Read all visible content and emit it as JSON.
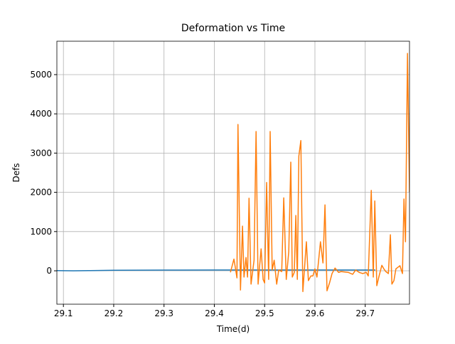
{
  "chart_data": {
    "type": "line",
    "title": "Deformation vs Time",
    "xlabel": "Time(d)",
    "ylabel": "Defs",
    "xlim": [
      29.087,
      29.788
    ],
    "ylim": [
      -851,
      5851
    ],
    "xticks": [
      29.1,
      29.2,
      29.3,
      29.4,
      29.5,
      29.6,
      29.7
    ],
    "yticks": [
      0,
      1000,
      2000,
      3000,
      4000,
      5000
    ],
    "grid": true,
    "series": [
      {
        "color": "#1f77b4",
        "x": [
          29.087,
          29.12,
          29.15,
          29.2,
          29.3,
          29.4,
          29.5,
          29.6,
          29.7,
          29.72
        ],
        "values": [
          5,
          0,
          5,
          15,
          18,
          20,
          20,
          20,
          20,
          20
        ]
      },
      {
        "color": "#ff7f0e",
        "x": [
          29.432,
          29.439,
          29.445,
          29.447,
          29.452,
          29.456,
          29.459,
          29.463,
          29.466,
          29.469,
          29.473,
          29.479,
          29.483,
          29.487,
          29.493,
          29.497,
          29.5,
          29.504,
          29.508,
          29.511,
          29.515,
          29.519,
          29.524,
          29.528,
          29.534,
          29.538,
          29.543,
          29.548,
          29.552,
          29.555,
          29.559,
          29.562,
          29.565,
          29.568,
          29.572,
          29.576,
          29.583,
          29.587,
          29.592,
          29.596,
          29.6,
          29.604,
          29.611,
          29.616,
          29.62,
          29.624,
          29.629,
          29.634,
          29.64,
          29.647,
          29.652,
          29.666,
          29.675,
          29.681,
          29.688,
          29.695,
          29.702,
          29.706,
          29.712,
          29.716,
          29.719,
          29.723,
          29.727,
          29.733,
          29.737,
          29.741,
          29.746,
          29.75,
          29.753,
          29.757,
          29.761,
          29.765,
          29.769,
          29.774,
          29.777,
          29.78,
          29.784,
          29.788
        ],
        "values": [
          -40,
          300,
          -180,
          3730,
          -490,
          1140,
          -160,
          340,
          -160,
          1850,
          -340,
          270,
          3550,
          -340,
          560,
          -220,
          -310,
          2250,
          -220,
          3550,
          20,
          270,
          -340,
          20,
          -20,
          1860,
          -220,
          490,
          2770,
          -160,
          -40,
          1410,
          -220,
          2920,
          3320,
          -530,
          740,
          -250,
          -130,
          -130,
          50,
          -160,
          740,
          200,
          1680,
          -510,
          -310,
          -70,
          70,
          -40,
          -20,
          -40,
          -90,
          20,
          -40,
          -70,
          -40,
          -130,
          2050,
          -160,
          1780,
          -380,
          -160,
          140,
          50,
          -20,
          -70,
          920,
          -340,
          -250,
          50,
          90,
          130,
          -70,
          1830,
          740,
          5540,
          2010
        ]
      }
    ]
  }
}
